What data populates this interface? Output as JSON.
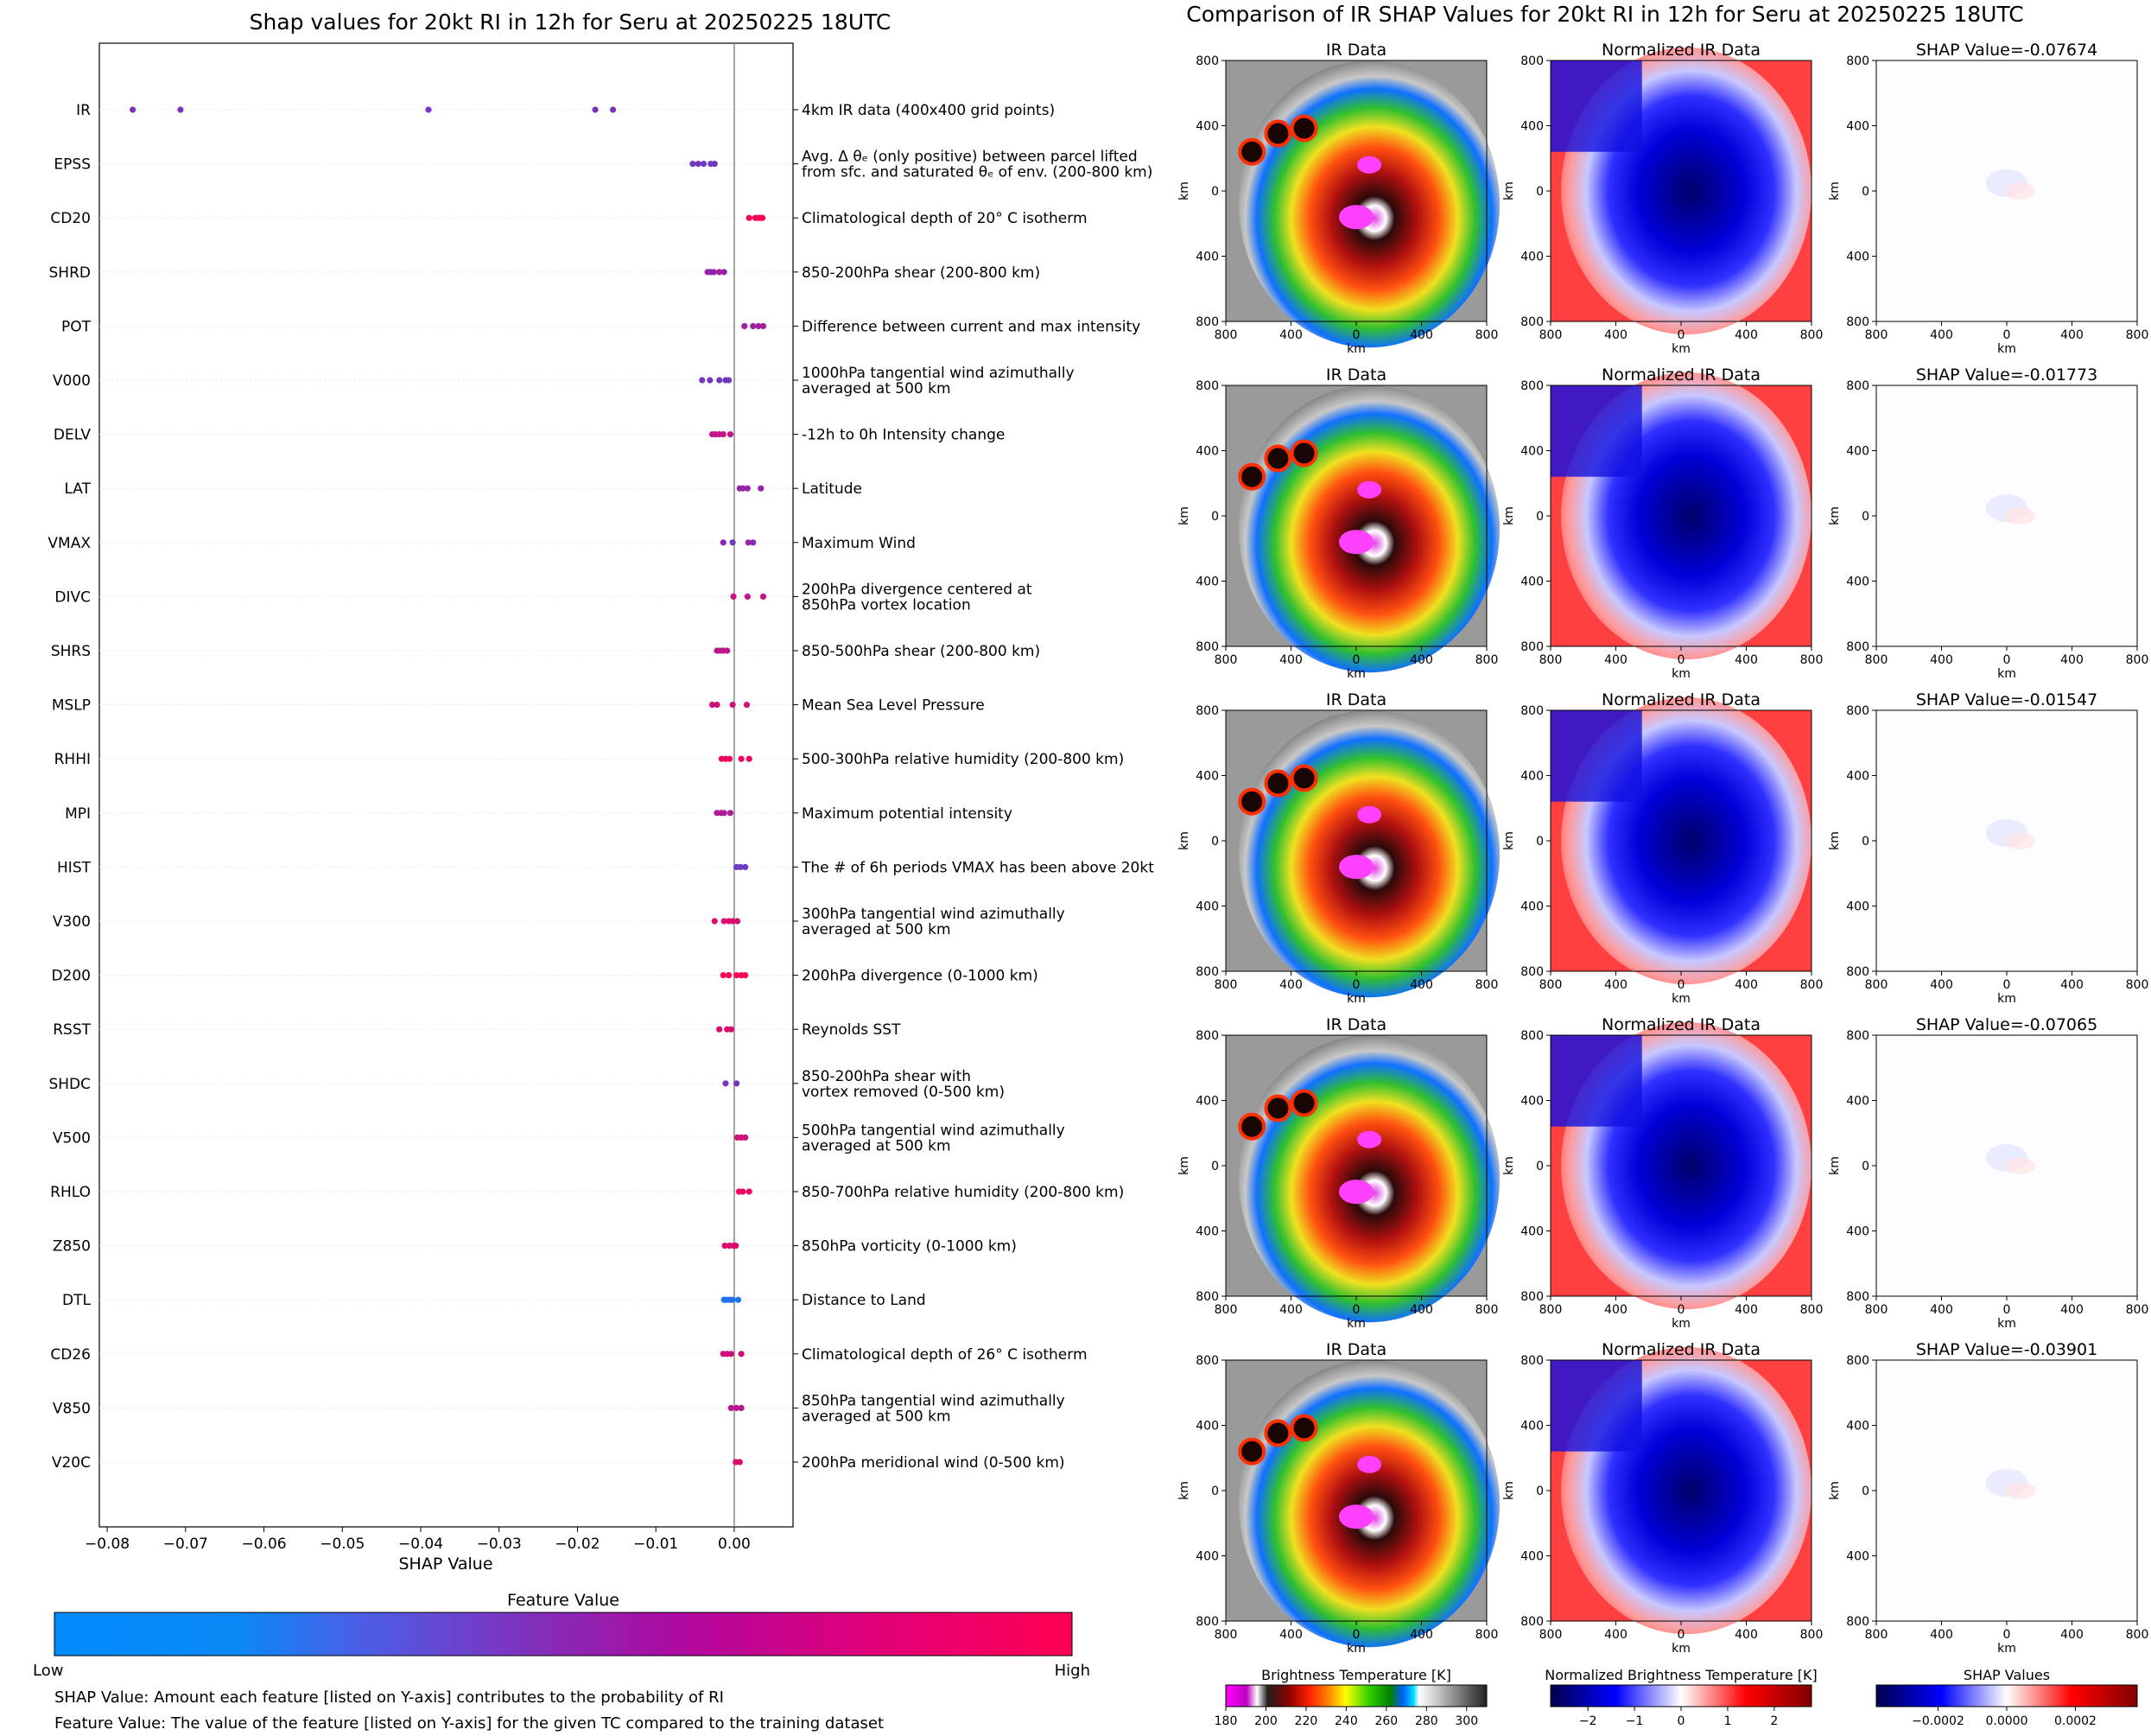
{
  "left_title": "Shap values for 20kt RI in 12h for Seru at 20250225 18UTC",
  "right_title": "Comparison of IR SHAP Values for 20kt RI in 12h for Seru at 20250225 18UTC",
  "colors": {
    "feature_low": "#008afb",
    "feature_mid": "#8a28b4",
    "feature_high": "#ff0052",
    "zero_line": "#888888",
    "panel_border": "#000000"
  },
  "chart_data": [
    {
      "type": "scatter",
      "title": "Shap values for 20kt RI in 12h for Seru at 20250225 18UTC",
      "xlabel": "SHAP Value",
      "xlim": [
        -0.081,
        0.0075
      ],
      "xticks": [
        "−0.08",
        "−0.07",
        "−0.06",
        "−0.05",
        "−0.04",
        "−0.03",
        "−0.02",
        "−0.01",
        "0.00"
      ],
      "xtick_values": [
        -0.08,
        -0.07,
        -0.06,
        -0.05,
        -0.04,
        -0.03,
        -0.02,
        -0.01,
        0.0
      ],
      "features": [
        {
          "name": "IR",
          "desc": [
            "4km IR data (400x400 grid points)"
          ],
          "shap": [
            -0.07674,
            -0.07065,
            -0.03901,
            -0.01773,
            -0.01547
          ],
          "fv": [
            0.45,
            0.45,
            0.45,
            0.45,
            0.45
          ]
        },
        {
          "name": "EPSS",
          "desc": [
            "Avg. Δ θₑ (only positive) between parcel lifted",
            "from sfc. and saturated θₑ of env. (200-800 km)"
          ],
          "shap": [
            -0.0053,
            -0.0046,
            -0.0039,
            -0.003,
            -0.0025
          ],
          "fv": [
            0.4,
            0.42,
            0.4,
            0.38,
            0.42
          ]
        },
        {
          "name": "CD20",
          "desc": [
            "Climatological depth of 20° C isotherm"
          ],
          "shap": [
            0.0019,
            0.0027,
            0.0031,
            0.0034,
            0.0036
          ],
          "fv": [
            0.95,
            1,
            1,
            1,
            1
          ]
        },
        {
          "name": "SHRD",
          "desc": [
            "850-200hPa shear (200-800 km)"
          ],
          "shap": [
            -0.0034,
            -0.003,
            -0.0026,
            -0.0019,
            -0.0013
          ],
          "fv": [
            0.55,
            0.55,
            0.55,
            0.6,
            0.55
          ]
        },
        {
          "name": "POT",
          "desc": [
            "Difference between current and max intensity"
          ],
          "shap": [
            0.0013,
            0.0024,
            0.0031,
            0.0037
          ],
          "fv": [
            0.6,
            0.6,
            0.6,
            0.6
          ]
        },
        {
          "name": "V000",
          "desc": [
            "1000hPa tangential wind azimuthally",
            "averaged at 500 km"
          ],
          "shap": [
            -0.0041,
            -0.0031,
            -0.0019,
            -0.0011,
            -0.0007
          ],
          "fv": [
            0.42,
            0.42,
            0.42,
            0.42,
            0.42
          ]
        },
        {
          "name": "DELV",
          "desc": [
            "-12h to 0h Intensity change"
          ],
          "shap": [
            -0.0028,
            -0.0024,
            -0.0019,
            -0.0014,
            -0.0005
          ],
          "fv": [
            0.75,
            0.75,
            0.75,
            0.75,
            0.75
          ]
        },
        {
          "name": "LAT",
          "desc": [
            "Latitude"
          ],
          "shap": [
            0.0007,
            0.0011,
            0.0017,
            0.0034
          ],
          "fv": [
            0.55,
            0.55,
            0.55,
            0.55
          ]
        },
        {
          "name": "VMAX",
          "desc": [
            "Maximum Wind"
          ],
          "shap": [
            -0.0014,
            -0.0002,
            0.0018,
            0.0024
          ],
          "fv": [
            0.5,
            0.4,
            0.55,
            0.5
          ]
        },
        {
          "name": "DIVC",
          "desc": [
            "200hPa divergence centered at",
            "850hPa vortex location"
          ],
          "shap": [
            -0.0001,
            0.0017,
            0.0037
          ],
          "fv": [
            0.75,
            0.75,
            0.75
          ]
        },
        {
          "name": "SHRS",
          "desc": [
            "850-500hPa shear (200-800 km)"
          ],
          "shap": [
            -0.0022,
            -0.0018,
            -0.0014,
            -0.0009
          ],
          "fv": [
            0.7,
            0.7,
            0.7,
            0.7
          ]
        },
        {
          "name": "MSLP",
          "desc": [
            "Mean Sea Level Pressure"
          ],
          "shap": [
            -0.0028,
            -0.0022,
            -0.0002,
            0.0016
          ],
          "fv": [
            0.8,
            0.8,
            0.8,
            0.8
          ]
        },
        {
          "name": "RHHI",
          "desc": [
            "500-300hPa relative humidity (200-800 km)"
          ],
          "shap": [
            -0.0016,
            -0.0011,
            -0.0006,
            0.0009,
            0.0019
          ],
          "fv": [
            0.95,
            0.95,
            0.95,
            0.95,
            0.95
          ]
        },
        {
          "name": "MPI",
          "desc": [
            "Maximum potential intensity"
          ],
          "shap": [
            -0.0022,
            -0.0017,
            -0.0013,
            -0.0005
          ],
          "fv": [
            0.65,
            0.65,
            0.65,
            0.65
          ]
        },
        {
          "name": "HIST",
          "desc": [
            "The # of 6h periods VMAX has been above 20kt"
          ],
          "shap": [
            0.0003,
            0.0008,
            0.0014
          ],
          "fv": [
            0.4,
            0.4,
            0.4
          ]
        },
        {
          "name": "V300",
          "desc": [
            "300hPa tangential wind azimuthally",
            "averaged at 500 km"
          ],
          "shap": [
            -0.0025,
            -0.0013,
            -0.0007,
            -0.0002,
            0.0004
          ],
          "fv": [
            0.85,
            0.85,
            0.85,
            0.85,
            0.85
          ]
        },
        {
          "name": "D200",
          "desc": [
            "200hPa divergence (0-1000 km)"
          ],
          "shap": [
            -0.0014,
            -0.0007,
            0.0003,
            0.0009,
            0.0014
          ],
          "fv": [
            1,
            1,
            1,
            1,
            1
          ]
        },
        {
          "name": "RSST",
          "desc": [
            "Reynolds SST"
          ],
          "shap": [
            -0.0019,
            -0.0009,
            -0.0004
          ],
          "fv": [
            0.85,
            0.85,
            0.85
          ]
        },
        {
          "name": "SHDC",
          "desc": [
            "850-200hPa shear with",
            "vortex removed (0-500 km)"
          ],
          "shap": [
            -0.0011,
            0.0003
          ],
          "fv": [
            0.42,
            0.42
          ]
        },
        {
          "name": "V500",
          "desc": [
            "500hPa tangential wind azimuthally",
            "averaged at 500 km"
          ],
          "shap": [
            0.0004,
            0.0009,
            0.0014
          ],
          "fv": [
            0.8,
            0.8,
            0.8
          ]
        },
        {
          "name": "RHLO",
          "desc": [
            "850-700hPa relative humidity (200-800 km)"
          ],
          "shap": [
            0.0006,
            0.0011,
            0.0019
          ],
          "fv": [
            0.95,
            0.95,
            0.95
          ]
        },
        {
          "name": "Z850",
          "desc": [
            "850hPa vorticity (0-1000 km)"
          ],
          "shap": [
            -0.0012,
            -0.0006,
            -0.0001,
            0.0002
          ],
          "fv": [
            0.85,
            0.85,
            0.85,
            0.85
          ]
        },
        {
          "name": "DTL",
          "desc": [
            "Distance to Land"
          ],
          "shap": [
            -0.0013,
            -0.001,
            -0.0006,
            -0.0002,
            0.0005
          ],
          "fv": [
            0.12,
            0.12,
            0.12,
            0.12,
            0.12
          ]
        },
        {
          "name": "CD26",
          "desc": [
            "Climatological depth of 26° C isotherm"
          ],
          "shap": [
            -0.0014,
            -0.0009,
            -0.0004,
            0.0009
          ],
          "fv": [
            0.8,
            0.8,
            0.8,
            0.8
          ]
        },
        {
          "name": "V850",
          "desc": [
            "850hPa tangential wind azimuthally",
            "averaged at 500 km"
          ],
          "shap": [
            -0.0004,
            0.0003,
            0.0009
          ],
          "fv": [
            0.7,
            0.7,
            0.7
          ]
        },
        {
          "name": "V20C",
          "desc": [
            "200hPa meridional wind (0-500 km)"
          ],
          "shap": [
            0.0002,
            0.0007
          ],
          "fv": [
            0.85,
            0.85
          ]
        }
      ]
    },
    {
      "type": "heatmap",
      "title": "Comparison of IR SHAP Values for 20kt RI in 12h for Seru at 20250225 18UTC",
      "rows": 5,
      "columns": [
        "IR Data",
        "Normalized IR Data",
        "SHAP Value"
      ],
      "shap_values": [
        "SHAP Value=-0.07674",
        "SHAP Value=-0.01773",
        "SHAP Value=-0.01547",
        "SHAP Value=-0.07065",
        "SHAP Value=-0.03901"
      ],
      "axis_label": "km",
      "xticks": [
        "800",
        "400",
        "0",
        "400",
        "800"
      ],
      "yticks": [
        "800",
        "400",
        "0",
        "400",
        "800"
      ],
      "colorbars": [
        {
          "label": "Brightness Temperature [K]",
          "ticks": [
            "180",
            "200",
            "220",
            "240",
            "260",
            "280",
            "300"
          ],
          "range": [
            180,
            310
          ]
        },
        {
          "label": "Normalized Brightness Temperature [K]",
          "ticks": [
            "−2",
            "−1",
            "0",
            "1",
            "2"
          ],
          "range": [
            -2.8,
            2.8
          ]
        },
        {
          "label": "SHAP Values",
          "ticks": [
            "−0.0002",
            "0.0000",
            "0.0002"
          ],
          "range": [
            -0.00038,
            0.00038
          ]
        }
      ]
    }
  ],
  "feature_colorbar": {
    "title": "Feature Value",
    "low": "Low",
    "high": "High"
  },
  "footnotes": [
    "SHAP Value: Amount each feature [listed on Y-axis] contributes to the probability of RI",
    "Feature Value: The value of the feature [listed on Y-axis] for the given TC compared to the training dataset"
  ]
}
